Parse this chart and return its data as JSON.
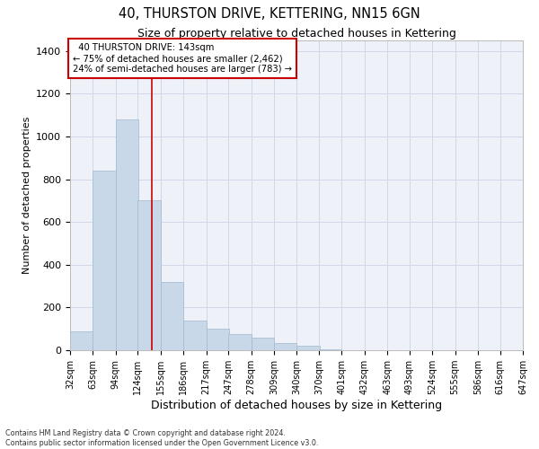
{
  "title": "40, THURSTON DRIVE, KETTERING, NN15 6GN",
  "subtitle": "Size of property relative to detached houses in Kettering",
  "xlabel": "Distribution of detached houses by size in Kettering",
  "ylabel": "Number of detached properties",
  "property_size": 143,
  "bin_edges": [
    32,
    63,
    94,
    124,
    155,
    186,
    217,
    247,
    278,
    309,
    340,
    370,
    401,
    432,
    463,
    493,
    524,
    555,
    586,
    616,
    647
  ],
  "bar_heights": [
    90,
    840,
    1080,
    700,
    320,
    140,
    100,
    75,
    60,
    35,
    20,
    5,
    0,
    0,
    0,
    0,
    0,
    0,
    0,
    0
  ],
  "bar_color": "#c8d8e8",
  "bar_edge_color": "#a0b8d0",
  "vline_color": "#cc0000",
  "vline_x": 143,
  "annotation_text": "  40 THURSTON DRIVE: 143sqm\n← 75% of detached houses are smaller (2,462)\n24% of semi-detached houses are larger (783) →",
  "annotation_box_color": "#cc0000",
  "ylim": [
    0,
    1450
  ],
  "yticks": [
    0,
    200,
    400,
    600,
    800,
    1000,
    1200,
    1400
  ],
  "grid_color": "#d0d8e8",
  "bg_color": "#eef2f8",
  "footer_line1": "Contains HM Land Registry data © Crown copyright and database right 2024.",
  "footer_line2": "Contains public sector information licensed under the Open Government Licence v3.0."
}
